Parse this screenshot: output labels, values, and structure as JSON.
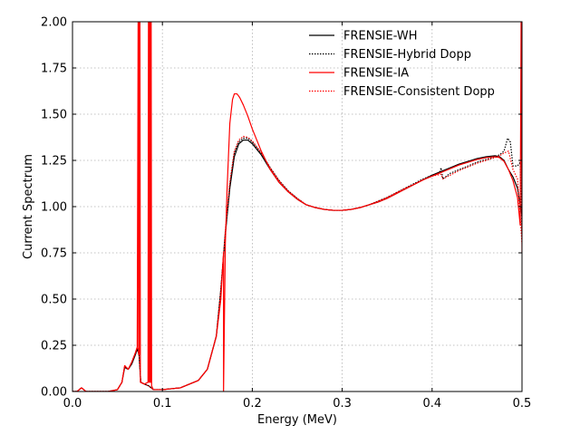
{
  "chart_data": {
    "type": "line",
    "title": "",
    "xlabel": "Energy (MeV)",
    "ylabel": "Current Spectrum",
    "xlim": [
      0.0,
      0.5
    ],
    "ylim": [
      0.0,
      2.0
    ],
    "xticks": [
      "0.0",
      "0.1",
      "0.2",
      "0.3",
      "0.4",
      "0.5"
    ],
    "yticks": [
      "0.00",
      "0.25",
      "0.50",
      "0.75",
      "1.00",
      "1.25",
      "1.50",
      "1.75",
      "2.00"
    ],
    "grid": true,
    "legend_position": "top-right",
    "series": [
      {
        "name": "FRENSIE-WH",
        "color": "#000000",
        "style": "solid",
        "points": [
          [
            0.0,
            0.0
          ],
          [
            0.005,
            0.0
          ],
          [
            0.01,
            0.02
          ],
          [
            0.015,
            0.0
          ],
          [
            0.04,
            0.0
          ],
          [
            0.05,
            0.01
          ],
          [
            0.055,
            0.05
          ],
          [
            0.058,
            0.13
          ],
          [
            0.062,
            0.12
          ],
          [
            0.066,
            0.15
          ],
          [
            0.07,
            0.2
          ],
          [
            0.072,
            0.23
          ],
          [
            0.074,
            0.2
          ],
          [
            0.076,
            0.05
          ],
          [
            0.08,
            0.04
          ],
          [
            0.085,
            0.03
          ],
          [
            0.09,
            0.01
          ],
          [
            0.1,
            0.01
          ],
          [
            0.12,
            0.02
          ],
          [
            0.14,
            0.06
          ],
          [
            0.15,
            0.12
          ],
          [
            0.16,
            0.3
          ],
          [
            0.165,
            0.55
          ],
          [
            0.17,
            0.85
          ],
          [
            0.175,
            1.1
          ],
          [
            0.18,
            1.27
          ],
          [
            0.185,
            1.34
          ],
          [
            0.19,
            1.36
          ],
          [
            0.195,
            1.36
          ],
          [
            0.2,
            1.34
          ],
          [
            0.21,
            1.28
          ],
          [
            0.22,
            1.2
          ],
          [
            0.23,
            1.13
          ],
          [
            0.24,
            1.08
          ],
          [
            0.25,
            1.04
          ],
          [
            0.26,
            1.01
          ],
          [
            0.27,
            0.995
          ],
          [
            0.28,
            0.985
          ],
          [
            0.29,
            0.98
          ],
          [
            0.3,
            0.98
          ],
          [
            0.31,
            0.985
          ],
          [
            0.32,
            0.995
          ],
          [
            0.33,
            1.01
          ],
          [
            0.34,
            1.025
          ],
          [
            0.35,
            1.045
          ],
          [
            0.36,
            1.07
          ],
          [
            0.37,
            1.095
          ],
          [
            0.38,
            1.12
          ],
          [
            0.39,
            1.145
          ],
          [
            0.4,
            1.17
          ],
          [
            0.41,
            1.19
          ],
          [
            0.42,
            1.21
          ],
          [
            0.43,
            1.23
          ],
          [
            0.44,
            1.245
          ],
          [
            0.45,
            1.26
          ],
          [
            0.46,
            1.27
          ],
          [
            0.47,
            1.275
          ],
          [
            0.475,
            1.27
          ],
          [
            0.48,
            1.25
          ],
          [
            0.485,
            1.2
          ],
          [
            0.49,
            1.16
          ],
          [
            0.495,
            1.1
          ],
          [
            0.5,
            0.95
          ]
        ]
      },
      {
        "name": "FRENSIE-Hybrid Dopp",
        "color": "#000000",
        "style": "dotted",
        "points": [
          [
            0.0,
            0.0
          ],
          [
            0.005,
            0.0
          ],
          [
            0.01,
            0.02
          ],
          [
            0.015,
            0.0
          ],
          [
            0.04,
            0.0
          ],
          [
            0.05,
            0.01
          ],
          [
            0.055,
            0.05
          ],
          [
            0.058,
            0.13
          ],
          [
            0.062,
            0.12
          ],
          [
            0.066,
            0.15
          ],
          [
            0.07,
            0.2
          ],
          [
            0.072,
            0.23
          ],
          [
            0.074,
            0.2
          ],
          [
            0.076,
            0.05
          ],
          [
            0.08,
            0.04
          ],
          [
            0.085,
            0.03
          ],
          [
            0.09,
            0.01
          ],
          [
            0.1,
            0.01
          ],
          [
            0.12,
            0.02
          ],
          [
            0.14,
            0.06
          ],
          [
            0.15,
            0.12
          ],
          [
            0.16,
            0.3
          ],
          [
            0.165,
            0.55
          ],
          [
            0.17,
            0.86
          ],
          [
            0.175,
            1.12
          ],
          [
            0.18,
            1.29
          ],
          [
            0.185,
            1.35
          ],
          [
            0.19,
            1.37
          ],
          [
            0.195,
            1.37
          ],
          [
            0.2,
            1.35
          ],
          [
            0.21,
            1.29
          ],
          [
            0.22,
            1.21
          ],
          [
            0.23,
            1.14
          ],
          [
            0.24,
            1.085
          ],
          [
            0.25,
            1.045
          ],
          [
            0.26,
            1.01
          ],
          [
            0.27,
            0.995
          ],
          [
            0.28,
            0.985
          ],
          [
            0.29,
            0.98
          ],
          [
            0.3,
            0.98
          ],
          [
            0.31,
            0.985
          ],
          [
            0.32,
            0.995
          ],
          [
            0.33,
            1.01
          ],
          [
            0.34,
            1.03
          ],
          [
            0.35,
            1.05
          ],
          [
            0.36,
            1.075
          ],
          [
            0.37,
            1.1
          ],
          [
            0.38,
            1.125
          ],
          [
            0.39,
            1.15
          ],
          [
            0.4,
            1.17
          ],
          [
            0.408,
            1.18
          ],
          [
            0.41,
            1.21
          ],
          [
            0.412,
            1.15
          ],
          [
            0.42,
            1.18
          ],
          [
            0.43,
            1.2
          ],
          [
            0.44,
            1.22
          ],
          [
            0.45,
            1.24
          ],
          [
            0.46,
            1.255
          ],
          [
            0.47,
            1.27
          ],
          [
            0.475,
            1.28
          ],
          [
            0.48,
            1.3
          ],
          [
            0.484,
            1.37
          ],
          [
            0.487,
            1.35
          ],
          [
            0.49,
            1.22
          ],
          [
            0.495,
            1.22
          ],
          [
            0.498,
            1.24
          ],
          [
            0.5,
            0.85
          ]
        ]
      },
      {
        "name": "FRENSIE-IA",
        "color": "#ff0000",
        "style": "solid",
        "points": [
          [
            0.0,
            0.0
          ],
          [
            0.005,
            0.0
          ],
          [
            0.01,
            0.02
          ],
          [
            0.015,
            0.0
          ],
          [
            0.04,
            0.0
          ],
          [
            0.05,
            0.01
          ],
          [
            0.055,
            0.05
          ],
          [
            0.058,
            0.14
          ],
          [
            0.062,
            0.12
          ],
          [
            0.066,
            0.16
          ],
          [
            0.07,
            0.21
          ],
          [
            0.072,
            0.24
          ],
          [
            0.073,
            2.0
          ],
          [
            0.0735,
            0.2
          ],
          [
            0.074,
            2.0
          ],
          [
            0.0745,
            0.2
          ],
          [
            0.075,
            2.0
          ],
          [
            0.0755,
            0.05
          ],
          [
            0.08,
            0.04
          ],
          [
            0.084,
            0.05
          ],
          [
            0.0845,
            2.0
          ],
          [
            0.085,
            0.05
          ],
          [
            0.0855,
            2.0
          ],
          [
            0.086,
            0.05
          ],
          [
            0.0865,
            2.0
          ],
          [
            0.087,
            0.05
          ],
          [
            0.0875,
            2.0
          ],
          [
            0.088,
            0.03
          ],
          [
            0.09,
            0.01
          ],
          [
            0.1,
            0.01
          ],
          [
            0.12,
            0.02
          ],
          [
            0.14,
            0.06
          ],
          [
            0.15,
            0.12
          ],
          [
            0.16,
            0.3
          ],
          [
            0.165,
            0.5
          ],
          [
            0.168,
            0.75
          ],
          [
            0.168,
            0.0
          ],
          [
            0.17,
            0.8
          ],
          [
            0.172,
            1.1
          ],
          [
            0.175,
            1.45
          ],
          [
            0.178,
            1.58
          ],
          [
            0.18,
            1.61
          ],
          [
            0.183,
            1.61
          ],
          [
            0.186,
            1.59
          ],
          [
            0.19,
            1.55
          ],
          [
            0.195,
            1.49
          ],
          [
            0.2,
            1.42
          ],
          [
            0.21,
            1.3
          ],
          [
            0.22,
            1.2
          ],
          [
            0.23,
            1.13
          ],
          [
            0.24,
            1.08
          ],
          [
            0.25,
            1.04
          ],
          [
            0.26,
            1.01
          ],
          [
            0.27,
            0.995
          ],
          [
            0.28,
            0.985
          ],
          [
            0.29,
            0.98
          ],
          [
            0.3,
            0.98
          ],
          [
            0.31,
            0.985
          ],
          [
            0.32,
            0.995
          ],
          [
            0.33,
            1.01
          ],
          [
            0.34,
            1.025
          ],
          [
            0.35,
            1.045
          ],
          [
            0.36,
            1.07
          ],
          [
            0.37,
            1.095
          ],
          [
            0.38,
            1.12
          ],
          [
            0.39,
            1.145
          ],
          [
            0.4,
            1.165
          ],
          [
            0.41,
            1.185
          ],
          [
            0.42,
            1.205
          ],
          [
            0.43,
            1.225
          ],
          [
            0.44,
            1.24
          ],
          [
            0.45,
            1.255
          ],
          [
            0.46,
            1.265
          ],
          [
            0.47,
            1.27
          ],
          [
            0.475,
            1.265
          ],
          [
            0.48,
            1.245
          ],
          [
            0.485,
            1.2
          ],
          [
            0.49,
            1.14
          ],
          [
            0.495,
            1.05
          ],
          [
            0.498,
            0.9
          ],
          [
            0.499,
            2.0
          ],
          [
            0.5,
            0.75
          ]
        ]
      },
      {
        "name": "FRENSIE-Consistent Dopp",
        "color": "#ff0000",
        "style": "dotted",
        "points": [
          [
            0.0,
            0.0
          ],
          [
            0.005,
            0.0
          ],
          [
            0.01,
            0.02
          ],
          [
            0.015,
            0.0
          ],
          [
            0.04,
            0.0
          ],
          [
            0.05,
            0.01
          ],
          [
            0.055,
            0.05
          ],
          [
            0.058,
            0.14
          ],
          [
            0.062,
            0.12
          ],
          [
            0.066,
            0.16
          ],
          [
            0.07,
            0.21
          ],
          [
            0.072,
            0.24
          ],
          [
            0.074,
            0.2
          ],
          [
            0.076,
            0.05
          ],
          [
            0.08,
            0.04
          ],
          [
            0.085,
            0.03
          ],
          [
            0.09,
            0.01
          ],
          [
            0.1,
            0.01
          ],
          [
            0.12,
            0.02
          ],
          [
            0.14,
            0.06
          ],
          [
            0.15,
            0.12
          ],
          [
            0.16,
            0.3
          ],
          [
            0.165,
            0.55
          ],
          [
            0.17,
            0.87
          ],
          [
            0.175,
            1.13
          ],
          [
            0.18,
            1.3
          ],
          [
            0.185,
            1.36
          ],
          [
            0.19,
            1.38
          ],
          [
            0.195,
            1.375
          ],
          [
            0.2,
            1.355
          ],
          [
            0.21,
            1.29
          ],
          [
            0.22,
            1.21
          ],
          [
            0.23,
            1.14
          ],
          [
            0.24,
            1.085
          ],
          [
            0.25,
            1.045
          ],
          [
            0.26,
            1.01
          ],
          [
            0.27,
            0.995
          ],
          [
            0.28,
            0.985
          ],
          [
            0.29,
            0.98
          ],
          [
            0.3,
            0.98
          ],
          [
            0.31,
            0.985
          ],
          [
            0.32,
            0.995
          ],
          [
            0.33,
            1.01
          ],
          [
            0.34,
            1.03
          ],
          [
            0.35,
            1.05
          ],
          [
            0.36,
            1.075
          ],
          [
            0.37,
            1.1
          ],
          [
            0.38,
            1.12
          ],
          [
            0.39,
            1.145
          ],
          [
            0.4,
            1.165
          ],
          [
            0.41,
            1.175
          ],
          [
            0.412,
            1.15
          ],
          [
            0.42,
            1.17
          ],
          [
            0.43,
            1.195
          ],
          [
            0.44,
            1.215
          ],
          [
            0.45,
            1.235
          ],
          [
            0.46,
            1.25
          ],
          [
            0.47,
            1.265
          ],
          [
            0.475,
            1.275
          ],
          [
            0.48,
            1.29
          ],
          [
            0.485,
            1.3
          ],
          [
            0.49,
            1.2
          ],
          [
            0.495,
            1.15
          ],
          [
            0.5,
            0.8
          ]
        ]
      }
    ]
  }
}
